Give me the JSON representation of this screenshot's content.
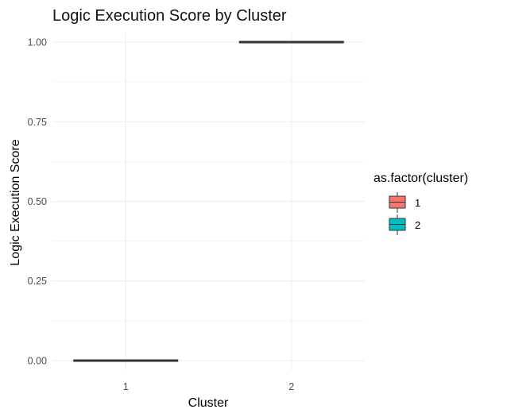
{
  "chart_data": {
    "type": "boxplot",
    "title": "Logic Execution Score by Cluster",
    "xlabel": "Cluster",
    "ylabel": "Logic Execution Score",
    "categories": [
      "1",
      "2"
    ],
    "boxes": [
      {
        "cluster": "1",
        "min": 0,
        "q1": 0,
        "median": 0,
        "q3": 0,
        "max": 0,
        "color": "#F8766D"
      },
      {
        "cluster": "2",
        "min": 1,
        "q1": 1,
        "median": 1,
        "q3": 1,
        "max": 1,
        "color": "#00BFC4"
      }
    ],
    "ylim": [
      -0.03,
      1.03
    ],
    "yticks": [
      0,
      0.25,
      0.5,
      0.75,
      1
    ],
    "ytick_labels": [
      "0.00",
      "0.25",
      "0.50",
      "0.75",
      "1.00"
    ],
    "yminor": [
      0.125,
      0.375,
      0.625,
      0.875
    ],
    "grid": true,
    "legend": {
      "title": "as.factor(cluster)",
      "placement": "right",
      "entries": [
        {
          "label": "1",
          "color": "#F8766D"
        },
        {
          "label": "2",
          "color": "#00BFC4"
        }
      ]
    }
  }
}
